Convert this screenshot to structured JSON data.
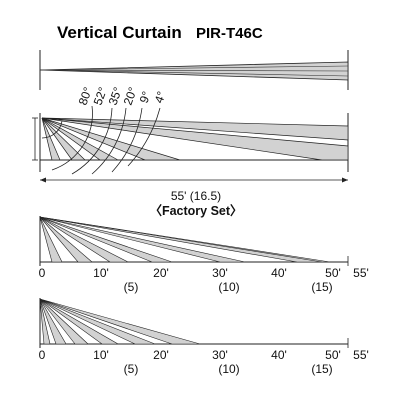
{
  "title": "Vertical Curtain",
  "model": "PIR-T46C",
  "side_view": {
    "angles": [
      "80°",
      "52°",
      "35°",
      "20°",
      "9°",
      "4°"
    ],
    "range_label": "55' (16.5)",
    "setting_label": "〈Factory Set〉"
  },
  "scales": [
    {
      "ticks_ft": [
        "0",
        "10'",
        "20'",
        "30'",
        "40'",
        "50'",
        "55'"
      ],
      "ticks_m": [
        "(5)",
        "(10)",
        "(15)"
      ]
    },
    {
      "ticks_ft": [
        "0",
        "10'",
        "20'",
        "30'",
        "40'",
        "50'",
        "55'"
      ],
      "ticks_m": [
        "(5)",
        "(10)",
        "(15)"
      ]
    }
  ],
  "colors": {
    "zone_fill": "#d2d2d2",
    "line": "#222222"
  }
}
